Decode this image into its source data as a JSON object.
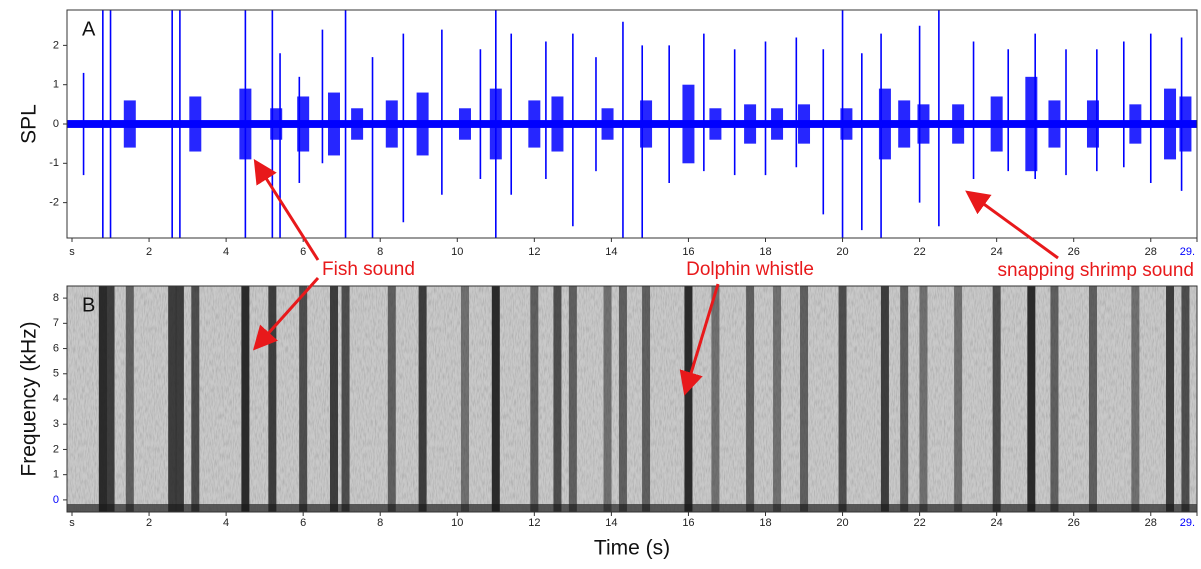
{
  "chart_data": [
    {
      "type": "waveform",
      "panel_label": "A",
      "y_label": "SPL",
      "color": "#0000ff",
      "xlim": [
        -0.13,
        29.2
      ],
      "ylim": [
        -2.9,
        2.9
      ],
      "xticks": [
        {
          "value": 0,
          "label": "s"
        },
        2,
        4,
        6,
        8,
        10,
        12,
        14,
        16,
        18,
        20,
        22,
        24,
        26,
        28,
        {
          "value": 29.2,
          "label": "29."
        }
      ],
      "yticks": [
        -2,
        -1,
        0,
        1,
        2
      ],
      "noise_level": 0.1,
      "bursts": {
        "x": [
          1.5,
          3.2,
          4.5,
          5.3,
          6.0,
          6.8,
          7.4,
          8.3,
          9.1,
          10.2,
          11.0,
          12.0,
          12.6,
          13.9,
          14.9,
          16.0,
          16.7,
          17.6,
          18.3,
          19.0,
          20.1,
          21.1,
          21.6,
          22.1,
          23.0,
          24.0,
          24.9,
          25.5,
          26.5,
          27.6,
          28.5,
          28.9
        ],
        "values": [
          0.6,
          0.7,
          0.9,
          0.4,
          0.7,
          0.8,
          0.4,
          0.6,
          0.8,
          0.4,
          0.9,
          0.6,
          0.7,
          0.4,
          0.6,
          1.0,
          0.4,
          0.5,
          0.4,
          0.5,
          0.4,
          0.9,
          0.6,
          0.5,
          0.5,
          0.7,
          1.2,
          0.6,
          0.6,
          0.5,
          0.9,
          0.7
        ]
      },
      "spikes": {
        "x": [
          0.3,
          0.8,
          1.0,
          2.6,
          2.8,
          4.5,
          5.2,
          5.4,
          5.9,
          6.5,
          7.1,
          7.8,
          8.6,
          9.6,
          10.6,
          11.0,
          11.4,
          12.3,
          13.0,
          13.6,
          14.3,
          14.8,
          15.5,
          16.4,
          17.2,
          18.0,
          18.8,
          19.5,
          20.0,
          20.5,
          21.0,
          22.0,
          22.5,
          23.4,
          24.3,
          25.0,
          25.8,
          26.6,
          27.3,
          28.0,
          28.8
        ],
        "top": [
          1.3,
          2.9,
          2.9,
          2.9,
          2.9,
          2.9,
          2.9,
          1.8,
          1.2,
          2.4,
          2.9,
          1.7,
          2.3,
          2.4,
          1.9,
          2.9,
          2.3,
          2.1,
          2.3,
          1.7,
          2.6,
          2.0,
          2.0,
          2.3,
          1.9,
          2.1,
          2.2,
          1.9,
          2.9,
          1.8,
          2.3,
          2.5,
          2.9,
          2.1,
          1.9,
          2.3,
          1.9,
          1.9,
          2.1,
          2.3,
          2.2
        ],
        "bottom": [
          -1.3,
          -2.9,
          -2.9,
          -2.9,
          -2.9,
          -2.9,
          -2.9,
          -2.9,
          -1.5,
          -1.0,
          -2.9,
          -2.9,
          -2.5,
          -1.8,
          -1.4,
          -2.9,
          -1.8,
          -1.4,
          -2.6,
          -1.2,
          -2.9,
          -2.9,
          -1.5,
          -1.2,
          -1.3,
          -1.3,
          -1.1,
          -2.3,
          -2.9,
          -2.7,
          -2.9,
          -2.0,
          -2.6,
          -1.4,
          -1.2,
          -1.4,
          -1.3,
          -1.2,
          -1.1,
          -1.5,
          -1.7
        ]
      }
    },
    {
      "type": "spectrogram",
      "panel_label": "B",
      "y_label": "Frequency (kHz)",
      "x_label": "Time (s)",
      "xlim": [
        -0.13,
        29.2
      ],
      "ylim": [
        -0.48,
        8.48
      ],
      "xticks": [
        {
          "value": 0,
          "label": "s"
        },
        2,
        4,
        6,
        8,
        10,
        12,
        14,
        16,
        18,
        20,
        22,
        24,
        26,
        28,
        {
          "value": 29.2,
          "label": "29."
        }
      ],
      "yticks": [
        0,
        1,
        2,
        3,
        4,
        5,
        6,
        7,
        8
      ],
      "bands": {
        "x": [
          0.8,
          1.0,
          1.5,
          2.6,
          2.8,
          3.2,
          4.5,
          5.2,
          6.0,
          6.8,
          7.1,
          8.3,
          9.1,
          10.2,
          11.0,
          12.0,
          12.6,
          13.0,
          13.9,
          14.3,
          14.9,
          16.0,
          16.7,
          17.6,
          18.3,
          19.0,
          20.0,
          21.1,
          21.6,
          22.1,
          23.0,
          24.0,
          24.9,
          25.5,
          26.5,
          27.6,
          28.5,
          28.9
        ],
        "values": [
          0.9,
          0.8,
          0.6,
          0.8,
          0.8,
          0.7,
          0.9,
          0.8,
          0.7,
          0.8,
          0.7,
          0.6,
          0.8,
          0.5,
          0.9,
          0.6,
          0.7,
          0.6,
          0.5,
          0.6,
          0.6,
          0.9,
          0.5,
          0.6,
          0.5,
          0.6,
          0.7,
          0.8,
          0.6,
          0.5,
          0.5,
          0.7,
          0.9,
          0.6,
          0.6,
          0.5,
          0.8,
          0.7
        ]
      }
    }
  ],
  "annotations": {
    "color": "#e8191b",
    "fish": "Fish sound",
    "dolphin": "Dolphin whistle",
    "shrimp": "snapping shrimp sound"
  }
}
